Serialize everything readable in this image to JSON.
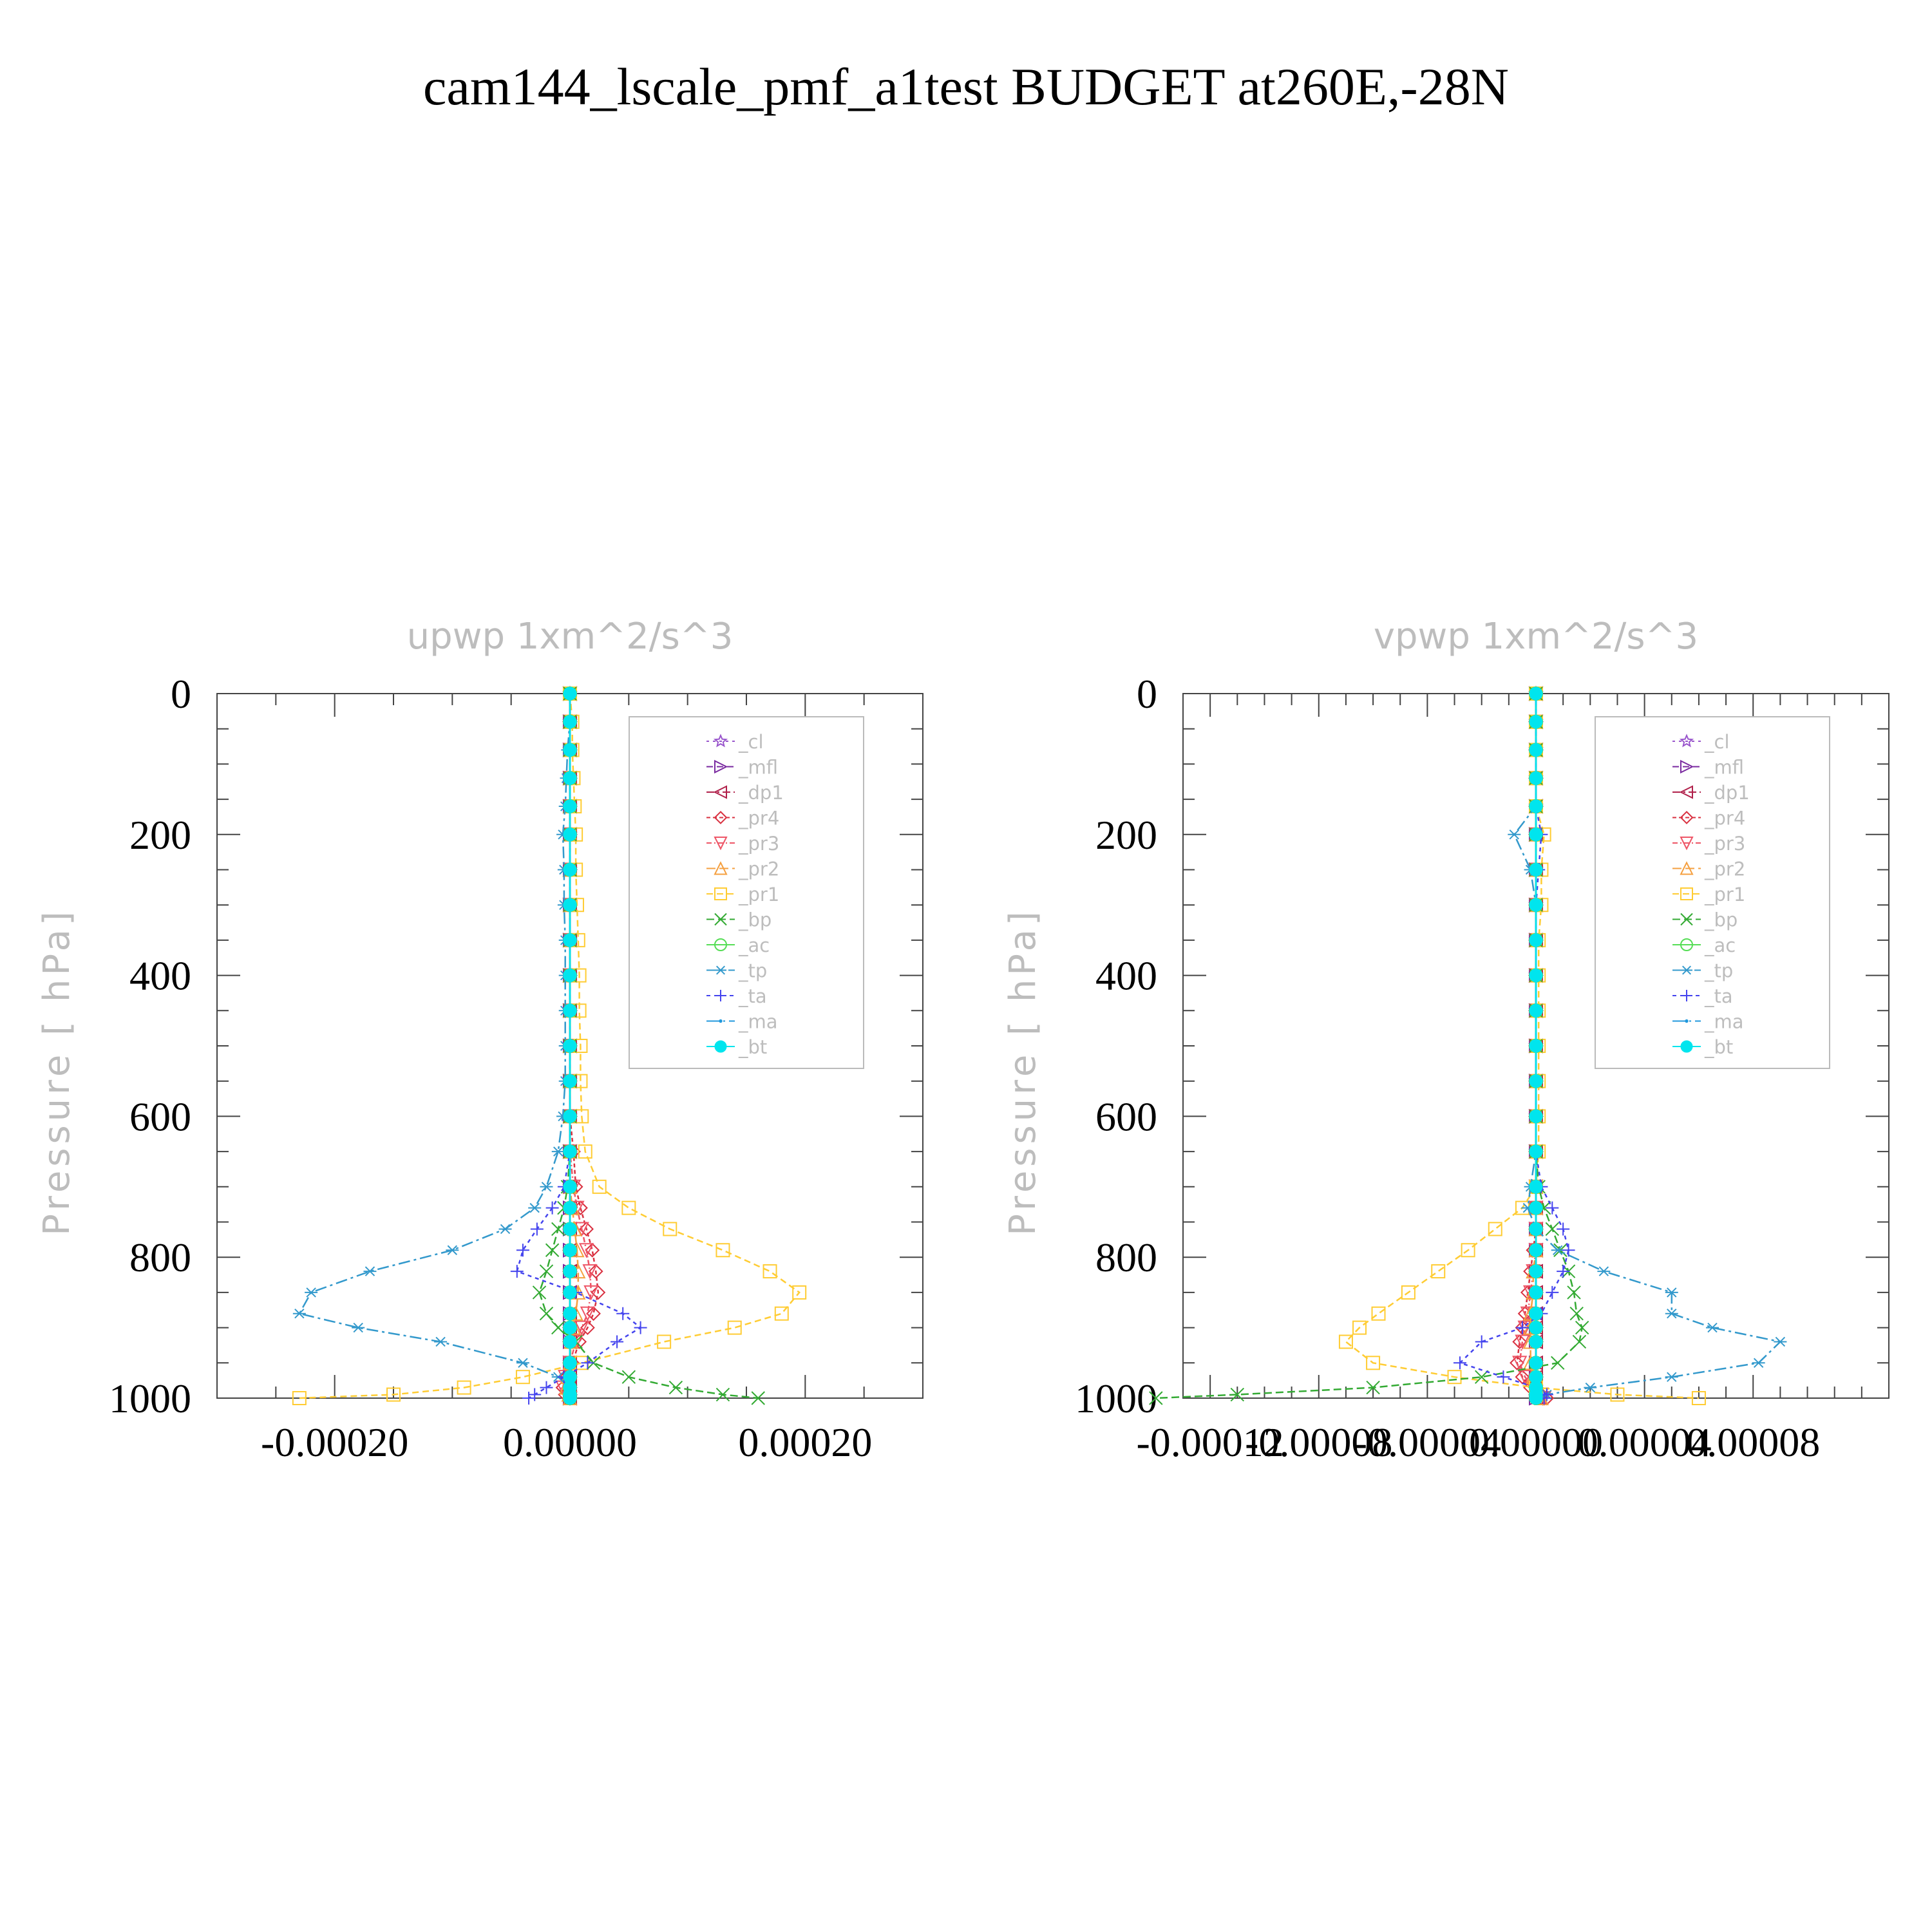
{
  "page": {
    "title": "cam144_lscale_pmf_a1test  BUDGET at260E,-28N"
  },
  "chart_data": [
    {
      "type": "line",
      "title": "upwp    1xm^2/s^3",
      "ylabel": "Pressure  [ hPa]",
      "xlabel": "",
      "xlim": [
        -0.0003,
        0.0003
      ],
      "ylim": [
        1000,
        0
      ],
      "xticks": [
        "-0.00020",
        "0.00000",
        "0.00020"
      ],
      "xtick_values": [
        -0.0002,
        0,
        0.0002
      ],
      "yticks": [
        "0",
        "200",
        "400",
        "600",
        "800",
        "1000"
      ],
      "ytick_values": [
        0,
        200,
        400,
        600,
        800,
        1000
      ],
      "legend_position": "top-right",
      "y": [
        0,
        40,
        80,
        120,
        160,
        200,
        250,
        300,
        350,
        400,
        450,
        500,
        550,
        600,
        650,
        700,
        730,
        760,
        790,
        820,
        850,
        880,
        900,
        920,
        950,
        970,
        985,
        995,
        1000
      ],
      "series": [
        {
          "name": "_cl",
          "color": "#9955cc",
          "marker": "star",
          "x": [
            0,
            0,
            0,
            0,
            0,
            0,
            0,
            0,
            0,
            0,
            0,
            0,
            0,
            0,
            0,
            0,
            0,
            0,
            0,
            0,
            0,
            0,
            0,
            0,
            0,
            0,
            0,
            0,
            0
          ]
        },
        {
          "name": "_mfl",
          "color": "#7a2aa0",
          "marker": "tri-right",
          "x": [
            0,
            0,
            0,
            0,
            0,
            0,
            0,
            0,
            0,
            0,
            0,
            0,
            0,
            0,
            0,
            0,
            0,
            0,
            0,
            0,
            0,
            0,
            0,
            0,
            0,
            0,
            0,
            0,
            0
          ]
        },
        {
          "name": "_dp1",
          "color": "#b0204a",
          "marker": "tri-left",
          "x": [
            0,
            0,
            0,
            0,
            0,
            0,
            0,
            0,
            0,
            0,
            0,
            0,
            0,
            0,
            0,
            0,
            0,
            0,
            0,
            0,
            0,
            0,
            0,
            0,
            0,
            0,
            0,
            0,
            0
          ]
        },
        {
          "name": "_pr4",
          "color": "#d93040",
          "marker": "diamond",
          "x": [
            0,
            0,
            0,
            0,
            0,
            0,
            0,
            0,
            0,
            0,
            0,
            0,
            0,
            0,
            3e-06,
            5e-06,
            9e-06,
            1.4e-05,
            1.9e-05,
            2.2e-05,
            2.4e-05,
            2e-05,
            1.5e-05,
            8e-06,
            2e-06,
            -3e-06,
            -6e-06,
            -4e-06,
            0
          ]
        },
        {
          "name": "_pr3",
          "color": "#ee5566",
          "marker": "tri-down",
          "x": [
            0,
            0,
            0,
            0,
            0,
            0,
            0,
            0,
            0,
            0,
            0,
            0,
            0,
            0,
            0,
            3e-06,
            6e-06,
            1e-05,
            1.4e-05,
            1.7e-05,
            1.8e-05,
            1.5e-05,
            1e-05,
            5e-06,
            0,
            -4e-06,
            -6e-06,
            -3e-06,
            0
          ]
        },
        {
          "name": "_pr2",
          "color": "#f5a040",
          "marker": "tri-up",
          "x": [
            0,
            0,
            0,
            0,
            0,
            0,
            0,
            0,
            0,
            0,
            0,
            0,
            0,
            0,
            0,
            0,
            2e-06,
            4e-06,
            6e-06,
            7e-06,
            7e-06,
            5e-06,
            3e-06,
            1e-06,
            0,
            -2e-06,
            -3e-06,
            -1e-06,
            0
          ]
        },
        {
          "name": "_pr1",
          "color": "#ffcc33",
          "marker": "square",
          "x": [
            0,
            2e-06,
            2e-06,
            3e-06,
            4e-06,
            5e-06,
            5e-06,
            6e-06,
            7e-06,
            8e-06,
            8e-06,
            9e-06,
            9e-06,
            1e-05,
            1.3e-05,
            2.5e-05,
            5e-05,
            8.5e-05,
            0.00013,
            0.00017,
            0.000195,
            0.00018,
            0.00014,
            8e-05,
            1e-05,
            -4e-05,
            -9e-05,
            -0.00015,
            -0.00023
          ]
        },
        {
          "name": "_bp",
          "color": "#33aa33",
          "marker": "x",
          "x": [
            0,
            0,
            0,
            0,
            0,
            0,
            0,
            0,
            0,
            0,
            0,
            0,
            0,
            0,
            0,
            -2e-06,
            -5e-06,
            -1e-05,
            -1.5e-05,
            -2e-05,
            -2.6e-05,
            -2e-05,
            -1e-05,
            5e-06,
            2e-05,
            5e-05,
            9e-05,
            0.00013,
            0.00016
          ]
        },
        {
          "name": "_ac",
          "color": "#55dd55",
          "marker": "circle",
          "x": [
            0,
            0,
            0,
            0,
            0,
            0,
            0,
            0,
            0,
            0,
            0,
            0,
            0,
            0,
            0,
            0,
            0,
            0,
            0,
            0,
            0,
            0,
            0,
            0,
            0,
            0,
            0,
            0,
            0
          ]
        },
        {
          "name": "_tp",
          "color": "#3399cc",
          "marker": "asterisk",
          "x": [
            0,
            0,
            -2e-06,
            -3e-06,
            -4e-06,
            -6e-06,
            -5e-06,
            -5e-06,
            -4e-06,
            -4e-06,
            -4e-06,
            -4e-06,
            -4e-06,
            -6e-06,
            -1e-05,
            -2e-05,
            -3e-05,
            -5.5e-05,
            -0.0001,
            -0.00017,
            -0.00022,
            -0.00023,
            -0.00018,
            -0.00011,
            -4e-05,
            -1e-05,
            0,
            0,
            0
          ]
        },
        {
          "name": "_ta",
          "color": "#4444ee",
          "marker": "plus",
          "x": [
            0,
            0,
            0,
            0,
            0,
            0,
            0,
            0,
            0,
            0,
            0,
            0,
            0,
            0,
            0,
            -5e-06,
            -1.5e-05,
            -2.8e-05,
            -4e-05,
            -4.5e-05,
            5e-06,
            4.5e-05,
            6e-05,
            4e-05,
            1.5e-05,
            -5e-06,
            -2e-05,
            -3e-05,
            -3.5e-05
          ]
        },
        {
          "name": "_ma",
          "color": "#2299dd",
          "marker": "dot",
          "x": [
            0,
            0,
            0,
            0,
            0,
            0,
            0,
            0,
            0,
            0,
            0,
            0,
            0,
            0,
            0,
            0,
            0,
            0,
            0,
            0,
            0,
            0,
            0,
            0,
            0,
            0,
            0,
            0,
            0
          ]
        },
        {
          "name": "_bt",
          "color": "#00e5ee",
          "marker": "filled-circle",
          "x": [
            0,
            0,
            0,
            0,
            0,
            0,
            0,
            0,
            0,
            0,
            0,
            0,
            0,
            0,
            0,
            0,
            0,
            0,
            0,
            0,
            0,
            0,
            0,
            0,
            0,
            0,
            0,
            0,
            0
          ]
        }
      ]
    },
    {
      "type": "line",
      "title": "vpwp    1xm^2/s^3",
      "ylabel": "Pressure  [ hPa]",
      "xlabel": "",
      "xlim": [
        -0.00013,
        0.00013
      ],
      "ylim": [
        1000,
        0
      ],
      "xticks": [
        "-0.00012",
        "-0.00008",
        "-0.00004",
        "0.00000",
        "0.00004",
        "0.00008"
      ],
      "xtick_values": [
        -0.00012,
        -8e-05,
        -4e-05,
        0,
        4e-05,
        8e-05
      ],
      "yticks": [
        "0",
        "200",
        "400",
        "600",
        "800",
        "1000"
      ],
      "ytick_values": [
        0,
        200,
        400,
        600,
        800,
        1000
      ],
      "legend_position": "top-right",
      "y": [
        0,
        40,
        80,
        120,
        160,
        200,
        250,
        300,
        350,
        400,
        450,
        500,
        550,
        600,
        650,
        700,
        730,
        760,
        790,
        820,
        850,
        880,
        900,
        920,
        950,
        970,
        985,
        995,
        1000
      ],
      "series": [
        {
          "name": "_cl",
          "color": "#9955cc",
          "marker": "star",
          "x": [
            0,
            0,
            0,
            0,
            0,
            0,
            0,
            0,
            0,
            0,
            0,
            0,
            0,
            0,
            0,
            0,
            0,
            0,
            0,
            0,
            0,
            0,
            0,
            0,
            0,
            0,
            0,
            0,
            0
          ]
        },
        {
          "name": "_mfl",
          "color": "#7a2aa0",
          "marker": "tri-right",
          "x": [
            0,
            0,
            0,
            0,
            0,
            0,
            0,
            0,
            0,
            0,
            0,
            0,
            0,
            0,
            0,
            0,
            0,
            0,
            0,
            0,
            0,
            0,
            0,
            0,
            0,
            0,
            0,
            0,
            0
          ]
        },
        {
          "name": "_dp1",
          "color": "#b0204a",
          "marker": "tri-left",
          "x": [
            0,
            0,
            0,
            0,
            0,
            0,
            0,
            0,
            0,
            0,
            0,
            0,
            0,
            0,
            0,
            0,
            0,
            0,
            0,
            0,
            0,
            0,
            0,
            0,
            0,
            0,
            0,
            0,
            0
          ]
        },
        {
          "name": "_pr4",
          "color": "#d93040",
          "marker": "diamond",
          "x": [
            0,
            0,
            0,
            0,
            0,
            0,
            0,
            0,
            0,
            0,
            0,
            0,
            0,
            0,
            0,
            0,
            0,
            0,
            -1e-06,
            -2e-06,
            -3e-06,
            -4e-06,
            -5e-06,
            -6e-06,
            -7e-06,
            -5e-06,
            -2e-06,
            2e-06,
            4e-06
          ]
        },
        {
          "name": "_pr3",
          "color": "#ee5566",
          "marker": "tri-down",
          "x": [
            0,
            0,
            0,
            0,
            0,
            0,
            0,
            0,
            0,
            0,
            0,
            0,
            0,
            0,
            0,
            0,
            0,
            0,
            0,
            -1e-06,
            -2e-06,
            -3e-06,
            -4e-06,
            -5e-06,
            -6e-06,
            -4e-06,
            -1e-06,
            2e-06,
            3e-06
          ]
        },
        {
          "name": "_pr2",
          "color": "#f5a040",
          "marker": "tri-up",
          "x": [
            0,
            0,
            0,
            0,
            0,
            0,
            0,
            0,
            0,
            0,
            0,
            0,
            0,
            0,
            0,
            0,
            0,
            0,
            0,
            -1e-06,
            -1e-06,
            -2e-06,
            -2e-06,
            -2e-06,
            -2e-06,
            -1e-06,
            0,
            1e-06,
            2e-06
          ]
        },
        {
          "name": "_pr1",
          "color": "#ffcc33",
          "marker": "square",
          "x": [
            0,
            0,
            0,
            0,
            0,
            3e-06,
            2e-06,
            2e-06,
            1e-06,
            1e-06,
            1e-06,
            1e-06,
            1e-06,
            1e-06,
            1e-06,
            0,
            -5e-06,
            -1.5e-05,
            -2.5e-05,
            -3.6e-05,
            -4.7e-05,
            -5.8e-05,
            -6.5e-05,
            -7e-05,
            -6e-05,
            -3e-05,
            0,
            3e-05,
            6e-05
          ]
        },
        {
          "name": "_bp",
          "color": "#33aa33",
          "marker": "x",
          "x": [
            0,
            0,
            0,
            0,
            0,
            0,
            0,
            0,
            0,
            0,
            0,
            0,
            0,
            0,
            0,
            1e-06,
            3e-06,
            6e-06,
            9e-06,
            1.2e-05,
            1.4e-05,
            1.5e-05,
            1.7e-05,
            1.6e-05,
            8e-06,
            -2e-05,
            -6e-05,
            -0.00011,
            -0.00014
          ]
        },
        {
          "name": "_ac",
          "color": "#55dd55",
          "marker": "circle",
          "x": [
            0,
            0,
            0,
            0,
            0,
            0,
            0,
            0,
            0,
            0,
            0,
            0,
            0,
            0,
            0,
            0,
            0,
            0,
            0,
            0,
            0,
            0,
            0,
            0,
            0,
            0,
            0,
            0,
            0
          ]
        },
        {
          "name": "_tp",
          "color": "#3399cc",
          "marker": "asterisk",
          "x": [
            0,
            0,
            0,
            0,
            0,
            -8e-06,
            -2e-06,
            0,
            0,
            0,
            0,
            0,
            0,
            0,
            0,
            -2e-06,
            -3e-06,
            0,
            8e-06,
            2.5e-05,
            5e-05,
            5e-05,
            6.5e-05,
            9e-05,
            8.2e-05,
            5e-05,
            2e-05,
            4e-06,
            0
          ]
        },
        {
          "name": "_ta",
          "color": "#4444ee",
          "marker": "plus",
          "x": [
            0,
            0,
            0,
            0,
            0,
            2e-06,
            1e-06,
            0,
            0,
            0,
            0,
            0,
            0,
            0,
            0,
            2e-06,
            6e-06,
            1e-05,
            1.2e-05,
            1e-05,
            6e-06,
            2e-06,
            -5e-06,
            -2e-05,
            -2.8e-05,
            -1.2e-05,
            0,
            4e-06,
            3e-06
          ]
        },
        {
          "name": "_ma",
          "color": "#2299dd",
          "marker": "dot",
          "x": [
            0,
            0,
            0,
            0,
            0,
            0,
            0,
            0,
            0,
            0,
            0,
            0,
            0,
            0,
            0,
            0,
            0,
            0,
            0,
            0,
            0,
            0,
            0,
            0,
            0,
            0,
            0,
            0,
            0
          ]
        },
        {
          "name": "_bt",
          "color": "#00e5ee",
          "marker": "filled-circle",
          "x": [
            0,
            0,
            0,
            0,
            0,
            0,
            0,
            0,
            0,
            0,
            0,
            0,
            0,
            0,
            0,
            0,
            0,
            0,
            0,
            0,
            0,
            0,
            0,
            0,
            0,
            0,
            0,
            0,
            0
          ]
        }
      ]
    }
  ]
}
